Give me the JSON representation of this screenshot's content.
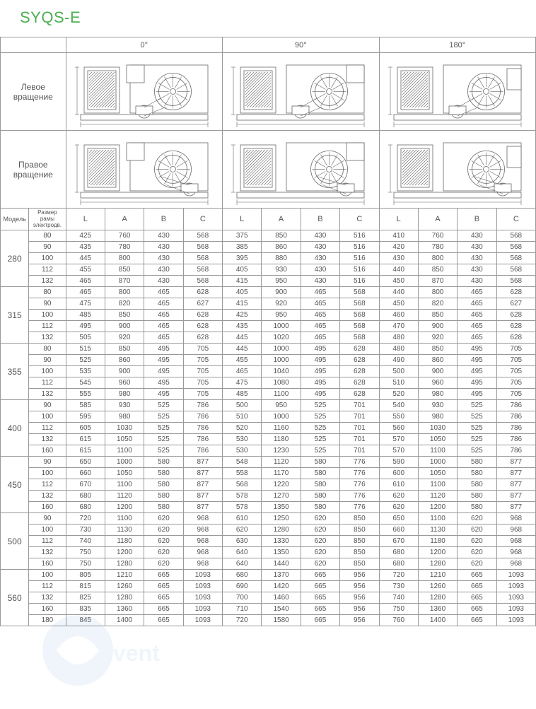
{
  "title": "SYQS-E",
  "angles": [
    "0°",
    "90°",
    "180°"
  ],
  "rotations": {
    "left": "Левое\nвращение",
    "right": "Правое\nвращение"
  },
  "col_headers": {
    "model": "Модель",
    "frame": "Размер рамы электродв.",
    "L": "L",
    "A": "A",
    "B": "B",
    "C": "C"
  },
  "groups": [
    {
      "model": "280",
      "rows": [
        {
          "f": "80",
          "d": [
            [
              425,
              760,
              430,
              568
            ],
            [
              375,
              850,
              430,
              516
            ],
            [
              410,
              760,
              430,
              568
            ]
          ]
        },
        {
          "f": "90",
          "d": [
            [
              435,
              780,
              430,
              568
            ],
            [
              385,
              860,
              430,
              516
            ],
            [
              420,
              780,
              430,
              568
            ]
          ]
        },
        {
          "f": "100",
          "d": [
            [
              445,
              800,
              430,
              568
            ],
            [
              395,
              880,
              430,
              516
            ],
            [
              430,
              800,
              430,
              568
            ]
          ]
        },
        {
          "f": "112",
          "d": [
            [
              455,
              850,
              430,
              568
            ],
            [
              405,
              930,
              430,
              516
            ],
            [
              440,
              850,
              430,
              568
            ]
          ]
        },
        {
          "f": "132",
          "d": [
            [
              465,
              870,
              430,
              568
            ],
            [
              415,
              950,
              430,
              516
            ],
            [
              450,
              870,
              430,
              568
            ]
          ]
        }
      ]
    },
    {
      "model": "315",
      "rows": [
        {
          "f": "80",
          "d": [
            [
              465,
              800,
              465,
              628
            ],
            [
              405,
              900,
              465,
              568
            ],
            [
              440,
              800,
              465,
              628
            ]
          ]
        },
        {
          "f": "90",
          "d": [
            [
              475,
              820,
              465,
              627
            ],
            [
              415,
              920,
              465,
              568
            ],
            [
              450,
              820,
              465,
              627
            ]
          ]
        },
        {
          "f": "100",
          "d": [
            [
              485,
              850,
              465,
              628
            ],
            [
              425,
              950,
              465,
              568
            ],
            [
              460,
              850,
              465,
              628
            ]
          ]
        },
        {
          "f": "112",
          "d": [
            [
              495,
              900,
              465,
              628
            ],
            [
              435,
              1000,
              465,
              568
            ],
            [
              470,
              900,
              465,
              628
            ]
          ]
        },
        {
          "f": "132",
          "d": [
            [
              505,
              920,
              465,
              628
            ],
            [
              445,
              1020,
              465,
              568
            ],
            [
              480,
              920,
              465,
              628
            ]
          ]
        }
      ]
    },
    {
      "model": "355",
      "rows": [
        {
          "f": "80",
          "d": [
            [
              515,
              850,
              495,
              705
            ],
            [
              445,
              1000,
              495,
              628
            ],
            [
              480,
              850,
              495,
              705
            ]
          ]
        },
        {
          "f": "90",
          "d": [
            [
              525,
              860,
              495,
              705
            ],
            [
              455,
              1000,
              495,
              628
            ],
            [
              490,
              860,
              495,
              705
            ]
          ]
        },
        {
          "f": "100",
          "d": [
            [
              535,
              900,
              495,
              705
            ],
            [
              465,
              1040,
              495,
              628
            ],
            [
              500,
              900,
              495,
              705
            ]
          ]
        },
        {
          "f": "112",
          "d": [
            [
              545,
              960,
              495,
              705
            ],
            [
              475,
              1080,
              495,
              628
            ],
            [
              510,
              960,
              495,
              705
            ]
          ]
        },
        {
          "f": "132",
          "d": [
            [
              555,
              980,
              495,
              705
            ],
            [
              485,
              1100,
              495,
              628
            ],
            [
              520,
              980,
              495,
              705
            ]
          ]
        }
      ]
    },
    {
      "model": "400",
      "rows": [
        {
          "f": "90",
          "d": [
            [
              585,
              930,
              525,
              786
            ],
            [
              500,
              950,
              525,
              701
            ],
            [
              540,
              930,
              525,
              786
            ]
          ]
        },
        {
          "f": "100",
          "d": [
            [
              595,
              980,
              525,
              786
            ],
            [
              510,
              1000,
              525,
              701
            ],
            [
              550,
              980,
              525,
              786
            ]
          ]
        },
        {
          "f": "112",
          "d": [
            [
              605,
              1030,
              525,
              786
            ],
            [
              520,
              1160,
              525,
              701
            ],
            [
              560,
              1030,
              525,
              786
            ]
          ]
        },
        {
          "f": "132",
          "d": [
            [
              615,
              1050,
              525,
              786
            ],
            [
              530,
              1180,
              525,
              701
            ],
            [
              570,
              1050,
              525,
              786
            ]
          ]
        },
        {
          "f": "160",
          "d": [
            [
              615,
              1100,
              525,
              786
            ],
            [
              530,
              1230,
              525,
              701
            ],
            [
              570,
              1100,
              525,
              786
            ]
          ]
        }
      ]
    },
    {
      "model": "450",
      "rows": [
        {
          "f": "90",
          "d": [
            [
              650,
              1000,
              580,
              877
            ],
            [
              548,
              1120,
              580,
              776
            ],
            [
              590,
              1000,
              580,
              877
            ]
          ]
        },
        {
          "f": "100",
          "d": [
            [
              660,
              1050,
              580,
              877
            ],
            [
              558,
              1170,
              580,
              776
            ],
            [
              600,
              1050,
              580,
              877
            ]
          ]
        },
        {
          "f": "112",
          "d": [
            [
              670,
              1100,
              580,
              877
            ],
            [
              568,
              1220,
              580,
              776
            ],
            [
              610,
              1100,
              580,
              877
            ]
          ]
        },
        {
          "f": "132",
          "d": [
            [
              680,
              1120,
              580,
              877
            ],
            [
              578,
              1270,
              580,
              776
            ],
            [
              620,
              1120,
              580,
              877
            ]
          ]
        },
        {
          "f": "160",
          "d": [
            [
              680,
              1200,
              580,
              877
            ],
            [
              578,
              1350,
              580,
              776
            ],
            [
              620,
              1200,
              580,
              877
            ]
          ]
        }
      ]
    },
    {
      "model": "500",
      "rows": [
        {
          "f": "90",
          "d": [
            [
              720,
              1100,
              620,
              968
            ],
            [
              610,
              1250,
              620,
              850
            ],
            [
              650,
              1100,
              620,
              968
            ]
          ]
        },
        {
          "f": "100",
          "d": [
            [
              730,
              1130,
              620,
              968
            ],
            [
              620,
              1280,
              620,
              850
            ],
            [
              660,
              1130,
              620,
              968
            ]
          ]
        },
        {
          "f": "112",
          "d": [
            [
              740,
              1180,
              620,
              968
            ],
            [
              630,
              1330,
              620,
              850
            ],
            [
              670,
              1180,
              620,
              968
            ]
          ]
        },
        {
          "f": "132",
          "d": [
            [
              750,
              1200,
              620,
              968
            ],
            [
              640,
              1350,
              620,
              850
            ],
            [
              680,
              1200,
              620,
              968
            ]
          ]
        },
        {
          "f": "160",
          "d": [
            [
              750,
              1280,
              620,
              968
            ],
            [
              640,
              1440,
              620,
              850
            ],
            [
              680,
              1280,
              620,
              968
            ]
          ]
        }
      ]
    },
    {
      "model": "560",
      "rows": [
        {
          "f": "100",
          "d": [
            [
              805,
              1210,
              665,
              1093
            ],
            [
              680,
              1370,
              665,
              956
            ],
            [
              720,
              1210,
              665,
              1093
            ]
          ]
        },
        {
          "f": "112",
          "d": [
            [
              815,
              1260,
              665,
              1093
            ],
            [
              690,
              1420,
              665,
              956
            ],
            [
              730,
              1260,
              665,
              1093
            ]
          ]
        },
        {
          "f": "132",
          "d": [
            [
              825,
              1280,
              665,
              1093
            ],
            [
              700,
              1460,
              665,
              956
            ],
            [
              740,
              1280,
              665,
              1093
            ]
          ]
        },
        {
          "f": "160",
          "d": [
            [
              835,
              1360,
              665,
              1093
            ],
            [
              710,
              1540,
              665,
              956
            ],
            [
              750,
              1360,
              665,
              1093
            ]
          ]
        },
        {
          "f": "180",
          "d": [
            [
              845,
              1400,
              665,
              1093
            ],
            [
              720,
              1580,
              665,
              956
            ],
            [
              760,
              1400,
              665,
              1093
            ]
          ]
        }
      ]
    }
  ],
  "style": {
    "title_color": "#4caf50",
    "border_color": "#999999",
    "text_color": "#555555",
    "bg_color": "#ffffff",
    "diagram_stroke": "#666666",
    "diagram_fill": "#ffffff",
    "col_widths": {
      "model": 40,
      "frame": 50,
      "num": 55
    }
  }
}
